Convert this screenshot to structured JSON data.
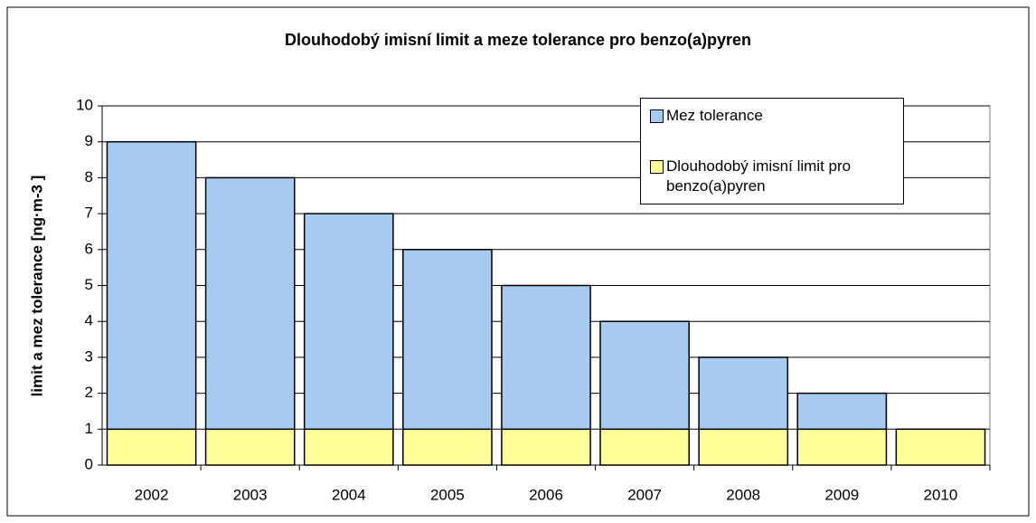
{
  "chart_data": {
    "type": "bar",
    "stacked": true,
    "title": "Dlouhodobý imisní limit a meze tolerance pro benzo(a)pyren",
    "y_label": "limit a mez tolerance [ng·m-3 ]",
    "categories": [
      "2002",
      "2003",
      "2004",
      "2005",
      "2006",
      "2007",
      "2008",
      "2009",
      "2010"
    ],
    "series": [
      {
        "name": "Dlouhodobý imisní limit pro benzo(a)pyren",
        "color": "#ffff99",
        "values": [
          1,
          1,
          1,
          1,
          1,
          1,
          1,
          1,
          1
        ]
      },
      {
        "name": "Mez tolerance",
        "color": "#a6caf0",
        "values": [
          8,
          7,
          6,
          5,
          4,
          3,
          2,
          1,
          0
        ]
      }
    ],
    "ylim": [
      0,
      10
    ],
    "yticks": [
      0,
      1,
      2,
      3,
      4,
      5,
      6,
      7,
      8,
      9,
      10
    ],
    "grid": true,
    "legend": "top-right"
  }
}
